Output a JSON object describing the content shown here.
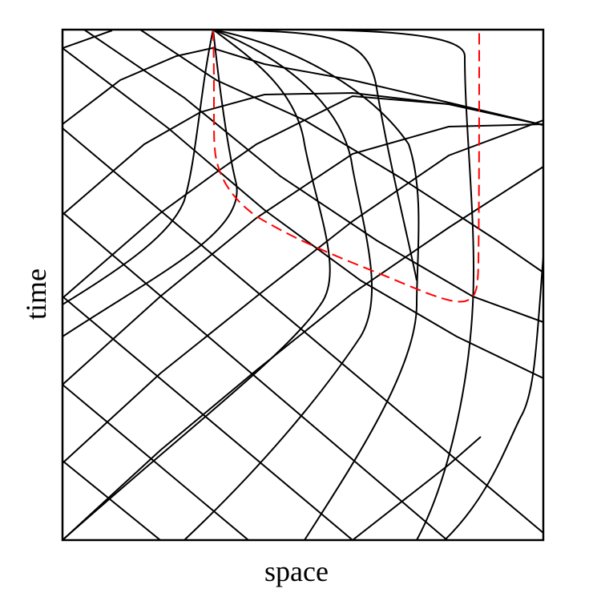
{
  "figure": {
    "xlabel": "space",
    "ylabel": "time"
  },
  "colors": {
    "lines": "#000000",
    "highlighted_path": "#ff0000",
    "background": "#ffffff"
  },
  "line_styles": {
    "grid_curves": "solid",
    "highlighted_path": "dashed"
  }
}
